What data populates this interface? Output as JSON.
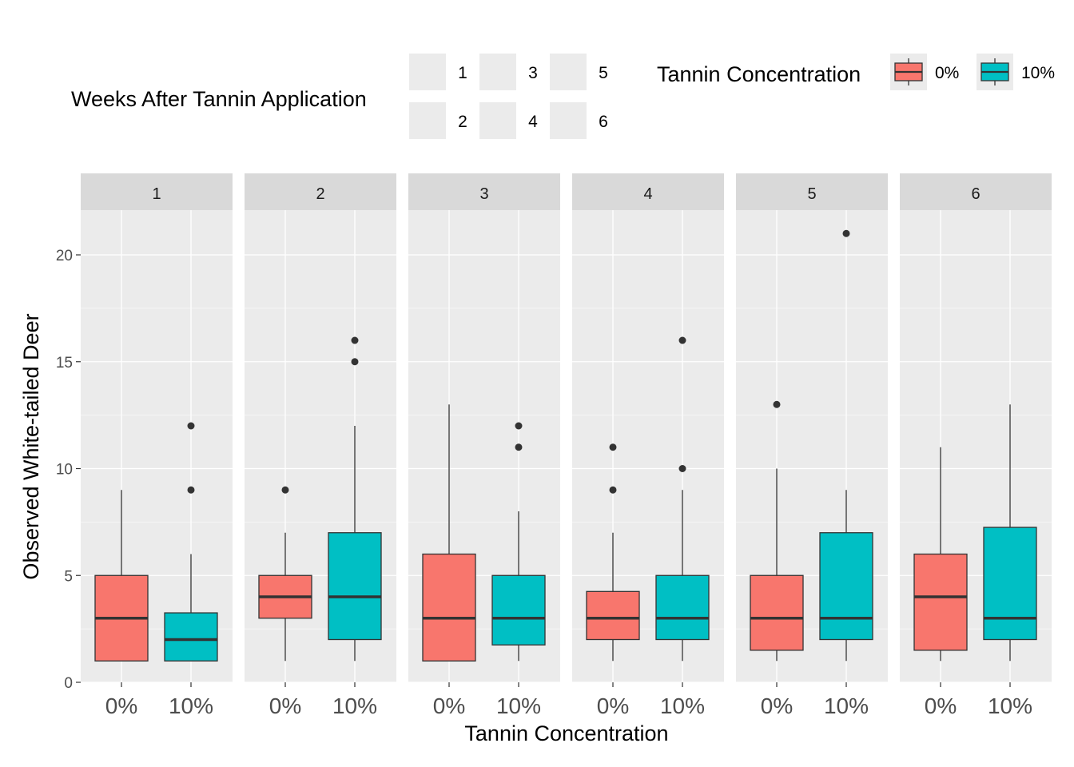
{
  "chart_data": {
    "type": "box",
    "xlabel": "Tannin Concentration",
    "ylabel": "Observed White-tailed Deer",
    "ylim": [
      0,
      22.5
    ],
    "y_ticks": [
      "0",
      "5",
      "10",
      "15",
      "20"
    ],
    "grid": true,
    "categories": [
      "0%",
      "10%"
    ],
    "colors": {
      "0%": "#F8766D",
      "10%": "#00BFC4"
    },
    "legends": [
      {
        "title": "Weeks After Tannin Application",
        "placement": "top",
        "items": [
          "1",
          "2",
          "3",
          "4",
          "5",
          "6"
        ]
      },
      {
        "title": "Tannin Concentration",
        "placement": "top-right",
        "items": [
          "0%",
          "10%"
        ]
      }
    ],
    "facets": [
      {
        "label": "1",
        "boxes": [
          {
            "category": "0%",
            "lower_whisker": 1,
            "q1": 1,
            "median": 3,
            "q3": 5,
            "upper_whisker": 9,
            "outliers": []
          },
          {
            "category": "10%",
            "lower_whisker": 1,
            "q1": 1,
            "median": 2,
            "q3": 3.25,
            "upper_whisker": 6,
            "outliers": [
              9,
              12
            ]
          }
        ]
      },
      {
        "label": "2",
        "boxes": [
          {
            "category": "0%",
            "lower_whisker": 1,
            "q1": 3,
            "median": 4,
            "q3": 5,
            "upper_whisker": 7,
            "outliers": [
              9
            ]
          },
          {
            "category": "10%",
            "lower_whisker": 1,
            "q1": 2,
            "median": 4,
            "q3": 7,
            "upper_whisker": 12,
            "outliers": [
              15,
              16
            ]
          }
        ]
      },
      {
        "label": "3",
        "boxes": [
          {
            "category": "0%",
            "lower_whisker": 1,
            "q1": 1,
            "median": 3,
            "q3": 6,
            "upper_whisker": 13,
            "outliers": []
          },
          {
            "category": "10%",
            "lower_whisker": 1,
            "q1": 1.75,
            "median": 3,
            "q3": 5,
            "upper_whisker": 8,
            "outliers": [
              11,
              12
            ]
          }
        ]
      },
      {
        "label": "4",
        "boxes": [
          {
            "category": "0%",
            "lower_whisker": 1,
            "q1": 2,
            "median": 3,
            "q3": 4.25,
            "upper_whisker": 7,
            "outliers": [
              9,
              11
            ]
          },
          {
            "category": "10%",
            "lower_whisker": 1,
            "q1": 2,
            "median": 3,
            "q3": 5,
            "upper_whisker": 9,
            "outliers": [
              10,
              16
            ]
          }
        ]
      },
      {
        "label": "5",
        "boxes": [
          {
            "category": "0%",
            "lower_whisker": 1,
            "q1": 1.5,
            "median": 3,
            "q3": 5,
            "upper_whisker": 10,
            "outliers": [
              13
            ]
          },
          {
            "category": "10%",
            "lower_whisker": 1,
            "q1": 2,
            "median": 3,
            "q3": 7,
            "upper_whisker": 9,
            "outliers": [
              21
            ]
          }
        ]
      },
      {
        "label": "6",
        "boxes": [
          {
            "category": "0%",
            "lower_whisker": 1,
            "q1": 1.5,
            "median": 4,
            "q3": 6,
            "upper_whisker": 11,
            "outliers": []
          },
          {
            "category": "10%",
            "lower_whisker": 1,
            "q1": 2,
            "median": 3,
            "q3": 7.25,
            "upper_whisker": 13,
            "outliers": []
          }
        ]
      }
    ]
  }
}
